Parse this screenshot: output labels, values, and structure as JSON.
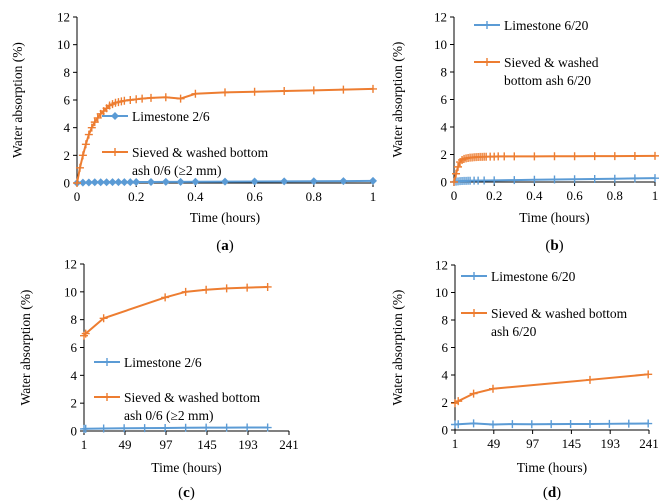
{
  "colors": {
    "blue": "#5b9bd5",
    "orange": "#ed7d31",
    "axis": "#000000"
  },
  "chart_data": [
    {
      "type": "line",
      "panel_label_open": "(",
      "panel_label_letter": "a",
      "panel_label_close": ")",
      "xlabel": "Time  (hours)",
      "ylabel": "Water absorption  (%)",
      "xlim": [
        0,
        1
      ],
      "ylim": [
        0,
        12
      ],
      "xticks": [
        0,
        0.2,
        0.4,
        0.6,
        0.8,
        1
      ],
      "xticklabels": [
        "0",
        "0.2",
        "0.4",
        "0.6",
        "0.8",
        "1"
      ],
      "yticks": [
        0,
        2,
        4,
        6,
        8,
        10,
        12
      ],
      "legend_lines": [
        {
          "series": 0,
          "lines": [
            "Limestone 2/6"
          ]
        },
        {
          "series": 1,
          "lines": [
            "Sieved & washed bottom",
            "ash 0/6 (≥2 mm)"
          ]
        }
      ],
      "series": [
        {
          "name": "Limestone 2/6",
          "color": "blue",
          "marker": "diamond",
          "x": [
            0,
            0.02,
            0.04,
            0.06,
            0.08,
            0.1,
            0.12,
            0.14,
            0.16,
            0.18,
            0.2,
            0.25,
            0.3,
            0.35,
            0.4,
            0.5,
            0.6,
            0.7,
            0.8,
            0.9,
            1.0
          ],
          "y": [
            0,
            0.03,
            0.04,
            0.05,
            0.05,
            0.05,
            0.06,
            0.06,
            0.06,
            0.06,
            0.07,
            0.07,
            0.08,
            0.08,
            0.09,
            0.1,
            0.11,
            0.12,
            0.13,
            0.14,
            0.15
          ]
        },
        {
          "name": "Sieved & washed bottom ash 0/6 (≥2 mm)",
          "color": "orange",
          "marker": "plus",
          "x": [
            0,
            0.01,
            0.02,
            0.03,
            0.04,
            0.05,
            0.06,
            0.07,
            0.08,
            0.09,
            0.1,
            0.11,
            0.12,
            0.13,
            0.14,
            0.15,
            0.16,
            0.18,
            0.2,
            0.22,
            0.25,
            0.3,
            0.35,
            0.4,
            0.5,
            0.6,
            0.7,
            0.8,
            0.9,
            1.0
          ],
          "y": [
            0,
            1.1,
            2.0,
            2.8,
            3.5,
            4.0,
            4.4,
            4.7,
            5.0,
            5.2,
            5.4,
            5.6,
            5.7,
            5.8,
            5.85,
            5.9,
            5.95,
            6.0,
            6.05,
            6.1,
            6.15,
            6.2,
            6.1,
            6.45,
            6.55,
            6.6,
            6.65,
            6.7,
            6.75,
            6.8
          ]
        }
      ]
    },
    {
      "type": "line",
      "panel_label_open": "(",
      "panel_label_letter": "b",
      "panel_label_close": ")",
      "xlabel": "Time  (hours)",
      "ylabel": "Water absorption  (%)",
      "xlim": [
        0,
        1
      ],
      "ylim": [
        0,
        12
      ],
      "xticks": [
        0,
        0.2,
        0.4,
        0.6,
        0.8,
        1
      ],
      "xticklabels": [
        "0",
        "0.2",
        "0.4",
        "0.6",
        "0.8",
        "1"
      ],
      "yticks": [
        0,
        2,
        4,
        6,
        8,
        10,
        12
      ],
      "legend_lines": [
        {
          "series": 0,
          "lines": [
            "Limestone 6/20"
          ]
        },
        {
          "series": 1,
          "lines": [
            "Sieved & washed",
            "bottom ash 6/20"
          ]
        }
      ],
      "series": [
        {
          "name": "Limestone 6/20",
          "color": "blue",
          "marker": "plus",
          "x": [
            0,
            0.01,
            0.02,
            0.03,
            0.04,
            0.05,
            0.06,
            0.07,
            0.08,
            0.1,
            0.12,
            0.15,
            0.2,
            0.3,
            0.4,
            0.5,
            0.6,
            0.7,
            0.8,
            0.9,
            1.0
          ],
          "y": [
            0,
            0.03,
            0.05,
            0.06,
            0.07,
            0.08,
            0.08,
            0.09,
            0.09,
            0.1,
            0.1,
            0.11,
            0.12,
            0.14,
            0.16,
            0.18,
            0.2,
            0.22,
            0.24,
            0.26,
            0.28
          ]
        },
        {
          "name": "Sieved & washed bottom ash 6/20",
          "color": "orange",
          "marker": "plus",
          "x": [
            0,
            0.01,
            0.02,
            0.03,
            0.04,
            0.05,
            0.06,
            0.07,
            0.08,
            0.09,
            0.1,
            0.11,
            0.12,
            0.13,
            0.14,
            0.15,
            0.16,
            0.18,
            0.2,
            0.22,
            0.25,
            0.3,
            0.4,
            0.5,
            0.6,
            0.7,
            0.8,
            0.9,
            1.0
          ],
          "y": [
            0,
            0.6,
            1.1,
            1.45,
            1.6,
            1.68,
            1.72,
            1.75,
            1.77,
            1.78,
            1.8,
            1.81,
            1.82,
            1.83,
            1.83,
            1.84,
            1.84,
            1.85,
            1.85,
            1.86,
            1.86,
            1.86,
            1.86,
            1.87,
            1.87,
            1.88,
            1.88,
            1.89,
            1.9
          ]
        }
      ]
    },
    {
      "type": "line",
      "panel_label_open": "(",
      "panel_label_letter": "c",
      "panel_label_close": ")",
      "xlabel": "Time  (hours)",
      "ylabel": "Water absorption  (%)",
      "xlim": [
        1,
        241
      ],
      "ylim": [
        0,
        12
      ],
      "xticks": [
        1,
        49,
        97,
        145,
        193,
        241
      ],
      "xticklabels": [
        "1",
        "49",
        "97",
        "145",
        "193",
        "241"
      ],
      "yticks": [
        0,
        2,
        4,
        6,
        8,
        10,
        12
      ],
      "legend_lines": [
        {
          "series": 0,
          "lines": [
            "Limestone 2/6"
          ]
        },
        {
          "series": 1,
          "lines": [
            "Sieved & washed bottom",
            "ash 0/6 (≥2 mm)"
          ]
        }
      ],
      "series": [
        {
          "name": "Limestone 2/6",
          "color": "blue",
          "marker": "plus",
          "x": [
            1,
            3,
            24,
            48,
            72,
            96,
            120,
            144,
            168,
            192,
            216
          ],
          "y": [
            0.15,
            0.16,
            0.18,
            0.2,
            0.21,
            0.22,
            0.23,
            0.24,
            0.24,
            0.25,
            0.25
          ]
        },
        {
          "name": "Sieved & washed bottom ash 0/6 (≥2 mm)",
          "color": "orange",
          "marker": "plus",
          "x": [
            1,
            3,
            24,
            96,
            120,
            144,
            168,
            192,
            216
          ],
          "y": [
            6.85,
            7.0,
            8.1,
            9.6,
            10.0,
            10.15,
            10.25,
            10.3,
            10.35
          ]
        }
      ]
    },
    {
      "type": "line",
      "panel_label_open": "(",
      "panel_label_letter": "d",
      "panel_label_close": ")",
      "xlabel": "Time  (hours)",
      "ylabel": "Water absorption  (%)",
      "xlim": [
        1,
        241
      ],
      "ylim": [
        0,
        12
      ],
      "xticks": [
        1,
        49,
        97,
        145,
        193,
        241
      ],
      "xticklabels": [
        "1",
        "49",
        "97",
        "145",
        "193",
        "241"
      ],
      "yticks": [
        0,
        2,
        4,
        6,
        8,
        10,
        12
      ],
      "legend_lines": [
        {
          "series": 0,
          "lines": [
            "Limestone 6/20"
          ]
        },
        {
          "series": 1,
          "lines": [
            "Sieved & washed bottom",
            "ash 6/20"
          ]
        }
      ],
      "series": [
        {
          "name": "Limestone 6/20",
          "color": "blue",
          "marker": "plus",
          "x": [
            1,
            5,
            24,
            48,
            72,
            96,
            120,
            144,
            168,
            192,
            216,
            240
          ],
          "y": [
            0.4,
            0.42,
            0.48,
            0.4,
            0.43,
            0.42,
            0.43,
            0.44,
            0.44,
            0.45,
            0.46,
            0.47
          ]
        },
        {
          "name": "Sieved & washed bottom ash 6/20",
          "color": "orange",
          "marker": "plus",
          "x": [
            1,
            5,
            24,
            48,
            168,
            240
          ],
          "y": [
            1.95,
            2.1,
            2.65,
            3.0,
            3.65,
            4.05
          ]
        }
      ]
    }
  ]
}
